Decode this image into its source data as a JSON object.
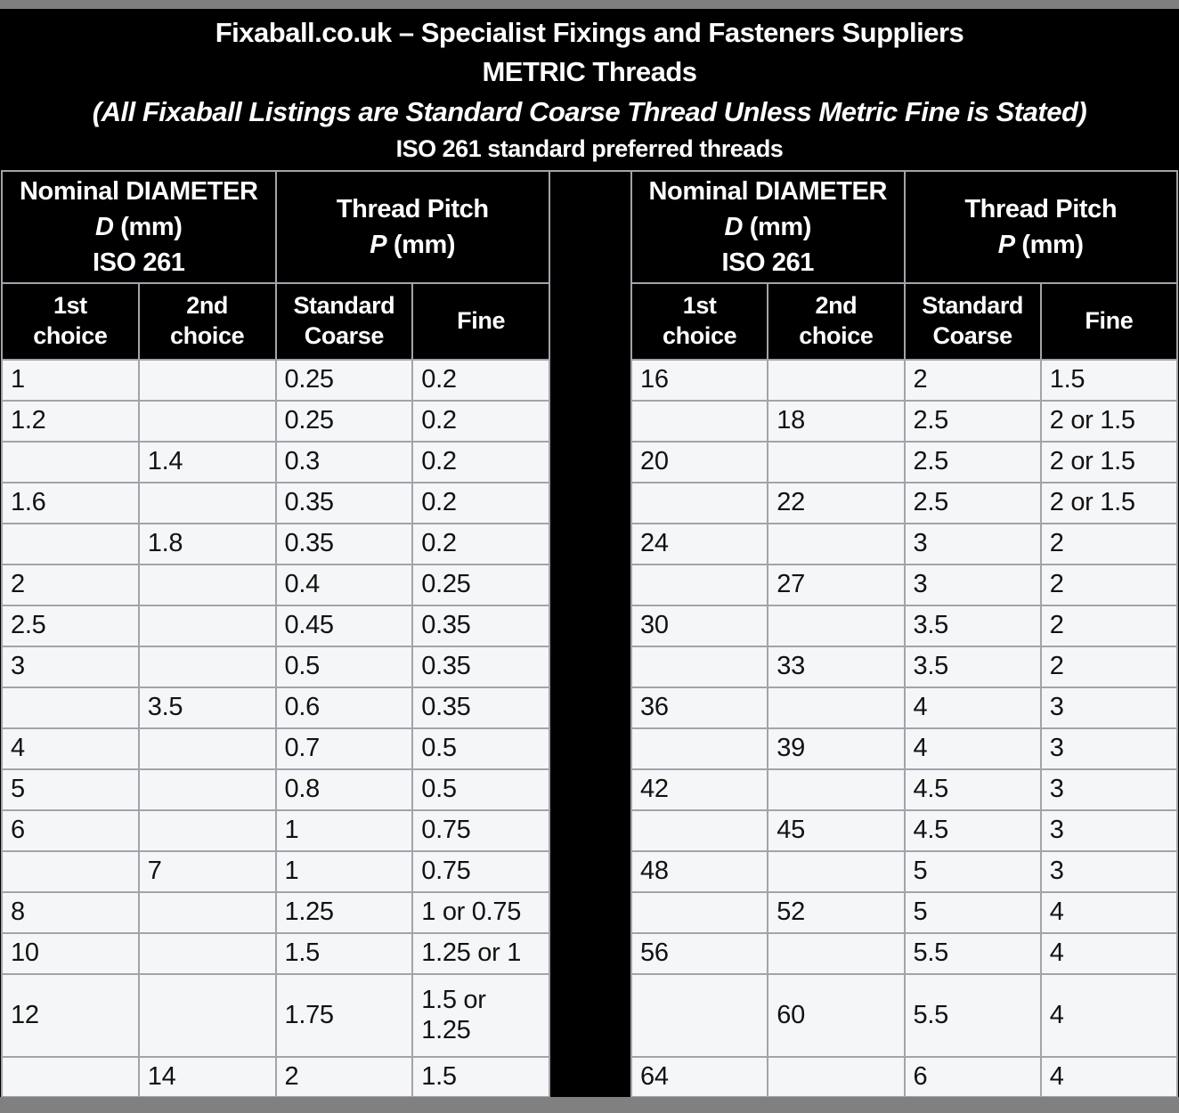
{
  "title": {
    "line1": "Fixaball.co.uk – Specialist Fixings and Fasteners Suppliers",
    "line2": "METRIC Threads",
    "line3": "(All Fixaball Listings are Standard Coarse Thread Unless Metric Fine is Stated)",
    "line4": "ISO 261 standard preferred threads"
  },
  "tables": {
    "diameter_header": {
      "line1": "Nominal DIAMETER",
      "d": "D",
      "d_unit": " (mm)",
      "line3": "ISO 261"
    },
    "pitch_header": {
      "line1": "Thread Pitch",
      "p": "P",
      "p_unit": " (mm)"
    },
    "column_headers": [
      "1st\nchoice",
      "2nd\nchoice",
      "Standard\nCoarse",
      "Fine"
    ],
    "left_rows": [
      [
        "1",
        "",
        "0.25",
        "0.2"
      ],
      [
        "1.2",
        "",
        "0.25",
        "0.2"
      ],
      [
        "",
        "1.4",
        "0.3",
        "0.2"
      ],
      [
        "1.6",
        "",
        "0.35",
        "0.2"
      ],
      [
        "",
        "1.8",
        "0.35",
        "0.2"
      ],
      [
        "2",
        "",
        "0.4",
        "0.25"
      ],
      [
        "2.5",
        "",
        "0.45",
        "0.35"
      ],
      [
        "3",
        "",
        "0.5",
        "0.35"
      ],
      [
        "",
        "3.5",
        "0.6",
        "0.35"
      ],
      [
        "4",
        "",
        "0.7",
        "0.5"
      ],
      [
        "5",
        "",
        "0.8",
        "0.5"
      ],
      [
        "6",
        "",
        "1",
        "0.75"
      ],
      [
        "",
        "7",
        "1",
        "0.75"
      ],
      [
        "8",
        "",
        "1.25",
        "1 or 0.75"
      ],
      [
        "10",
        "",
        "1.5",
        "1.25 or 1"
      ],
      [
        "12",
        "",
        "1.75",
        "1.5 or 1.25"
      ],
      [
        "",
        "14",
        "2",
        "1.5"
      ]
    ],
    "right_rows": [
      [
        "16",
        "",
        "2",
        "1.5"
      ],
      [
        "",
        "18",
        "2.5",
        "2 or 1.5"
      ],
      [
        "20",
        "",
        "2.5",
        "2 or 1.5"
      ],
      [
        "",
        "22",
        "2.5",
        "2 or 1.5"
      ],
      [
        "24",
        "",
        "3",
        "2"
      ],
      [
        "",
        "27",
        "3",
        "2"
      ],
      [
        "30",
        "",
        "3.5",
        "2"
      ],
      [
        "",
        "33",
        "3.5",
        "2"
      ],
      [
        "36",
        "",
        "4",
        "3"
      ],
      [
        "",
        "39",
        "4",
        "3"
      ],
      [
        "42",
        "",
        "4.5",
        "3"
      ],
      [
        "",
        "45",
        "4.5",
        "3"
      ],
      [
        "48",
        "",
        "5",
        "3"
      ],
      [
        "",
        "52",
        "5",
        "4"
      ],
      [
        "56",
        "",
        "5.5",
        "4"
      ],
      [
        "",
        "60",
        "5.5",
        "4"
      ],
      [
        "64",
        "",
        "6",
        "4"
      ]
    ],
    "colors": {
      "page_frame": "#7f7f7f",
      "header_background": "#000000",
      "header_text": "#ffffff",
      "cell_background": "#f5f6f8",
      "cell_text": "#121212",
      "grid_border": "#a3a3ab"
    }
  }
}
